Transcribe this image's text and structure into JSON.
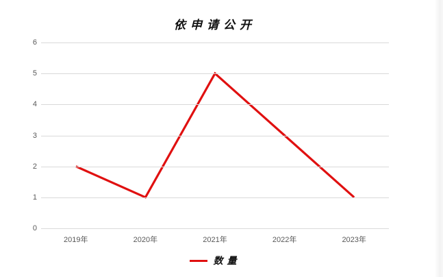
{
  "window": {
    "background": "#ffffff",
    "edge_shade_color": "#f0f0f0"
  },
  "chart_data": {
    "type": "line",
    "title": "依申请公开",
    "categories": [
      "2019年",
      "2020年",
      "2021年",
      "2022年",
      "2023年"
    ],
    "series": [
      {
        "name": "数量",
        "values": [
          2,
          1,
          5,
          3,
          1
        ],
        "color": "#e01010",
        "line_width": 3.2
      }
    ],
    "xlabel": "",
    "ylabel": "",
    "ylim": [
      0,
      6
    ],
    "yticks": [
      0,
      1,
      2,
      3,
      4,
      5,
      6
    ],
    "grid": "horizontal",
    "gridline_color": "#d9d9d9",
    "tick_label_color": "#595959",
    "legend_position": "bottom-center",
    "legend": [
      "数量"
    ]
  }
}
